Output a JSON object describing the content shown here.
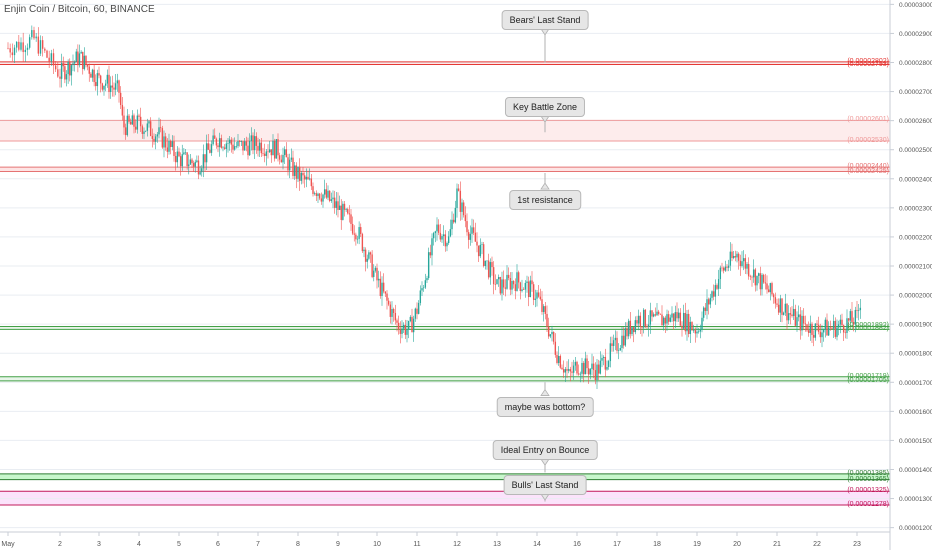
{
  "title": "Enjin Coin / Bitcoin, 60, BINANCE",
  "chart_data": {
    "type": "candlestick",
    "symbol": "Enjin Coin / Bitcoin",
    "interval": "60",
    "exchange": "BINANCE",
    "ylim": [
      1.185e-05,
      3.015e-05
    ],
    "y_ticks": [
      "0.00003000",
      "0.00002900",
      "0.00002800",
      "0.00002700",
      "0.00002600",
      "0.00002500",
      "0.00002400",
      "0.00002300",
      "0.00002200",
      "0.00002100",
      "0.00002000",
      "0.00001900",
      "0.00001800",
      "0.00001700",
      "0.00001600",
      "0.00001500",
      "0.00001400",
      "0.00001300",
      "0.00001200"
    ],
    "x_ticks": [
      "May",
      "2",
      "3",
      "4",
      "5",
      "6",
      "7",
      "8",
      "9",
      "10",
      "11",
      "12",
      "13",
      "14",
      "16",
      "17",
      "18",
      "19",
      "20",
      "21",
      "22",
      "23"
    ],
    "price_path": [
      {
        "day": 0.0,
        "price": 2.85e-05
      },
      {
        "day": 0.5,
        "price": 2.88e-05
      },
      {
        "day": 1.0,
        "price": 2.76e-05
      },
      {
        "day": 1.5,
        "price": 2.82e-05
      },
      {
        "day": 2.0,
        "price": 2.74e-05
      },
      {
        "day": 2.2,
        "price": 2.73e-05
      },
      {
        "day": 2.5,
        "price": 2.7e-05
      },
      {
        "day": 2.6,
        "price": 2.58e-05
      },
      {
        "day": 3.0,
        "price": 2.59e-05
      },
      {
        "day": 3.5,
        "price": 2.55e-05
      },
      {
        "day": 4.0,
        "price": 2.47e-05
      },
      {
        "day": 4.5,
        "price": 2.45e-05
      },
      {
        "day": 5.0,
        "price": 2.54e-05
      },
      {
        "day": 5.5,
        "price": 2.51e-05
      },
      {
        "day": 6.0,
        "price": 2.52e-05
      },
      {
        "day": 6.5,
        "price": 2.5e-05
      },
      {
        "day": 7.0,
        "price": 2.41e-05
      },
      {
        "day": 7.5,
        "price": 2.36e-05
      },
      {
        "day": 8.0,
        "price": 2.3e-05
      },
      {
        "day": 8.5,
        "price": 2.22e-05
      },
      {
        "day": 9.0,
        "price": 2.05e-05
      },
      {
        "day": 9.5,
        "price": 1.9e-05
      },
      {
        "day": 9.8,
        "price": 1.88e-05
      },
      {
        "day": 10.0,
        "price": 1.95e-05
      },
      {
        "day": 10.3,
        "price": 2.12e-05
      },
      {
        "day": 10.5,
        "price": 2.23e-05
      },
      {
        "day": 10.8,
        "price": 2.19e-05
      },
      {
        "day": 11.0,
        "price": 2.35e-05
      },
      {
        "day": 11.3,
        "price": 2.22e-05
      },
      {
        "day": 11.6,
        "price": 2.15e-05
      },
      {
        "day": 12.0,
        "price": 2.03e-05
      },
      {
        "day": 12.5,
        "price": 2.05e-05
      },
      {
        "day": 13.0,
        "price": 2e-05
      },
      {
        "day": 13.5,
        "price": 1.8e-05
      },
      {
        "day": 13.8,
        "price": 1.72e-05
      },
      {
        "day": 14.0,
        "price": 1.76e-05
      },
      {
        "day": 14.5,
        "price": 1.74e-05
      },
      {
        "day": 15.0,
        "price": 1.83e-05
      },
      {
        "day": 15.5,
        "price": 1.92e-05
      },
      {
        "day": 16.0,
        "price": 1.91e-05
      },
      {
        "day": 16.5,
        "price": 1.93e-05
      },
      {
        "day": 17.0,
        "price": 1.88e-05
      },
      {
        "day": 17.3,
        "price": 1.98e-05
      },
      {
        "day": 17.6,
        "price": 2.08e-05
      },
      {
        "day": 18.0,
        "price": 2.14e-05
      },
      {
        "day": 18.5,
        "price": 2.06e-05
      },
      {
        "day": 19.0,
        "price": 1.98e-05
      },
      {
        "day": 19.5,
        "price": 1.91e-05
      },
      {
        "day": 20.0,
        "price": 1.88e-05
      },
      {
        "day": 20.5,
        "price": 1.89e-05
      },
      {
        "day": 21.0,
        "price": 1.92e-05
      },
      {
        "day": 21.1,
        "price": 1.995e-05
      }
    ],
    "levels": [
      {
        "label": "(0.00002802)",
        "value": 2.802e-05,
        "color": "#e53935"
      },
      {
        "label": "(0.00002793)",
        "value": 2.793e-05,
        "color": "#e53935"
      },
      {
        "label": "(0.00002601)",
        "value": 2.601e-05,
        "color": "#ef9a9a"
      },
      {
        "label": "(0.00002530)",
        "value": 2.53e-05,
        "color": "#ef9a9a"
      },
      {
        "label": "(0.00002440)",
        "value": 2.44e-05,
        "color": "#e57373"
      },
      {
        "label": "(0.00002425)",
        "value": 2.425e-05,
        "color": "#e57373"
      },
      {
        "label": "(0.00001892)",
        "value": 1.892e-05,
        "color": "#43a047"
      },
      {
        "label": "(0.00001882)",
        "value": 1.882e-05,
        "color": "#43a047"
      },
      {
        "label": "(0.00001719)",
        "value": 1.719e-05,
        "color": "#43a047"
      },
      {
        "label": "(0.00001705)",
        "value": 1.705e-05,
        "color": "#43a047"
      },
      {
        "label": "(0.00001385)",
        "value": 1.385e-05,
        "color": "#2e7d32"
      },
      {
        "label": "(0.00001365)",
        "value": 1.365e-05,
        "color": "#2e7d32"
      },
      {
        "label": "(0.00001325)",
        "value": 1.325e-05,
        "color": "#c2185b"
      },
      {
        "label": "(0.00001278)",
        "value": 1.278e-05,
        "color": "#c2185b"
      }
    ],
    "zones": [
      {
        "from": 2.793e-05,
        "to": 2.802e-05,
        "color": "#fde8e8"
      },
      {
        "from": 2.53e-05,
        "to": 2.601e-05,
        "color": "#fdecec"
      },
      {
        "from": 2.425e-05,
        "to": 2.44e-05,
        "color": "#fde4e4"
      },
      {
        "from": 1.882e-05,
        "to": 1.892e-05,
        "color": "#e8f5e9"
      },
      {
        "from": 1.705e-05,
        "to": 1.719e-05,
        "color": "#e8f5e9"
      },
      {
        "from": 1.365e-05,
        "to": 1.385e-05,
        "color": "#c8f7cc"
      },
      {
        "from": 1.278e-05,
        "to": 1.325e-05,
        "color": "#fbe3fb"
      }
    ],
    "annotations": [
      {
        "text": "Bears' Last Stand",
        "day": 13.2,
        "price": 2.95e-05,
        "arrow": "down",
        "arrow_to": 2.8e-05
      },
      {
        "text": "Key Battle Zone",
        "day": 13.2,
        "price": 2.65e-05,
        "arrow": "down",
        "arrow_to": 2.56e-05
      },
      {
        "text": "1st resistance",
        "day": 13.2,
        "price": 2.33e-05,
        "arrow": "up",
        "arrow_to": 2.42e-05
      },
      {
        "text": "maybe was bottom?",
        "day": 13.2,
        "price": 1.62e-05,
        "arrow": "up",
        "arrow_to": 1.7e-05
      },
      {
        "text": "Ideal Entry on Bounce",
        "day": 13.2,
        "price": 1.47e-05,
        "arrow": "down",
        "arrow_to": 1.39e-05
      },
      {
        "text": "Bulls' Last Stand",
        "day": 13.2,
        "price": 1.35e-05,
        "arrow": "down",
        "arrow_to": 1.29e-05
      }
    ],
    "colors": {
      "up": "#26a69a",
      "down": "#ef5350",
      "grid": "#e9edf2",
      "axis_text": "#555555"
    },
    "grid": true
  }
}
